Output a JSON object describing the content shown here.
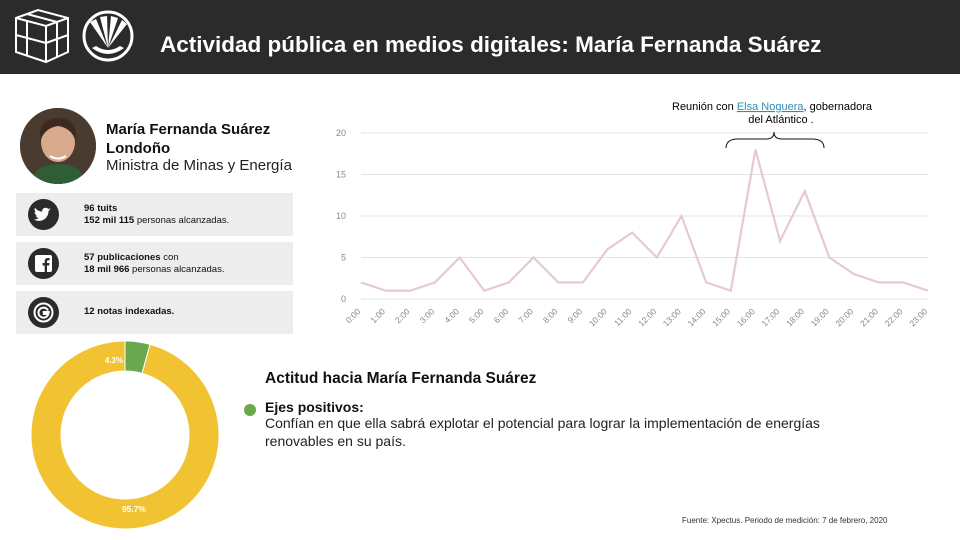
{
  "header": {
    "title": "Actividad pública en medios digitales: María Fernanda Suárez"
  },
  "profile": {
    "name": "María Fernanda Suárez Londoño",
    "role": "Ministra de Minas y Energía"
  },
  "stats": [
    {
      "icon": "twitter-icon",
      "line1_bold": "96 tuits",
      "line2_bold": "152 mil 115",
      "line2_rest": " personas alcanzadas."
    },
    {
      "icon": "facebook-icon",
      "line1_bold": "57 publicaciones",
      "line1_rest": " con",
      "line2_bold": "18 mil 966",
      "line2_rest": " personas alcanzadas."
    },
    {
      "icon": "google-icon",
      "line1_bold": "12 notas indexadas."
    }
  ],
  "annotation": {
    "prefix": "Reunión con ",
    "link": "Elsa Noguera",
    "suffix": ", gobernadora",
    "line2": "del Atlántico ."
  },
  "attitude": {
    "title": "Actitud hacia María Fernanda Suárez",
    "positive_label": "Ejes positivos:",
    "positive_text": "Confían en que ella sabrá explotar el potencial para lograr la implementación de energías renovables en su país."
  },
  "source": "Fuente: Xpectus. Periodo de medición: 7 de febrero, 2020",
  "chart_data": [
    {
      "type": "line",
      "categories": [
        "0:00",
        "1:00",
        "2:00",
        "3:00",
        "4:00",
        "5:00",
        "6:00",
        "7:00",
        "8:00",
        "9:00",
        "10:00",
        "11:00",
        "12:00",
        "13:00",
        "14:00",
        "15:00",
        "16:00",
        "17:00",
        "18:00",
        "19:00",
        "20:00",
        "21:00",
        "22:00",
        "23:00"
      ],
      "values": [
        2,
        1,
        1,
        2,
        5,
        1,
        2,
        5,
        2,
        2,
        6,
        8,
        5,
        10,
        2,
        1,
        18,
        7,
        13,
        5,
        3,
        2,
        2,
        1
      ],
      "yticks": [
        0,
        5,
        10,
        15,
        20
      ],
      "ylim": [
        0,
        20
      ],
      "color": "#e6c9d1",
      "grid": true
    },
    {
      "type": "pie",
      "labels": [
        "4.3%",
        "95.7%"
      ],
      "values": [
        4.3,
        95.7
      ],
      "colors": [
        "#6aa84f",
        "#f1c232"
      ]
    }
  ]
}
